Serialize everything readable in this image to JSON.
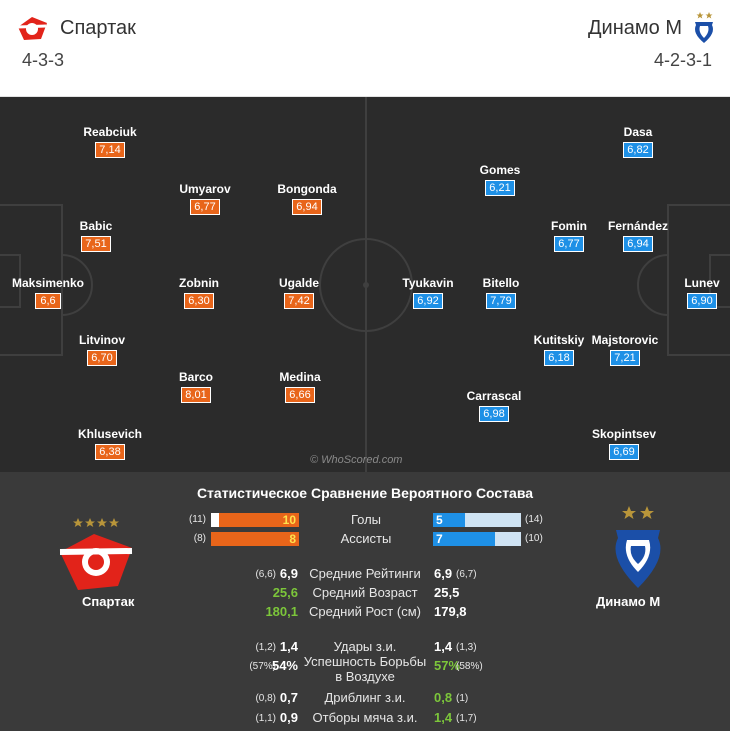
{
  "header": {
    "home_team": "Спартак",
    "home_formation": "4-3-3",
    "away_team": "Динамо М",
    "away_formation": "4-2-3-1"
  },
  "pitch": {
    "watermark": "© WhoScored.com",
    "home_players": [
      {
        "name": "Reabciuk",
        "rating": "7,14"
      },
      {
        "name": "Umyarov",
        "rating": "6,77"
      },
      {
        "name": "Bongonda",
        "rating": "6,94"
      },
      {
        "name": "Babic",
        "rating": "7,51"
      },
      {
        "name": "Maksimenko",
        "rating": "6,6"
      },
      {
        "name": "Zobnin",
        "rating": "6,30"
      },
      {
        "name": "Ugalde",
        "rating": "7,42"
      },
      {
        "name": "Litvinov",
        "rating": "6,70"
      },
      {
        "name": "Barco",
        "rating": "8,01"
      },
      {
        "name": "Medina",
        "rating": "6,66"
      },
      {
        "name": "Khlusevich",
        "rating": "6,38"
      }
    ],
    "away_players": [
      {
        "name": "Dasa",
        "rating": "6,82"
      },
      {
        "name": "Gomes",
        "rating": "6,21"
      },
      {
        "name": "Fomin",
        "rating": "6,77"
      },
      {
        "name": "Fernández",
        "rating": "6,94"
      },
      {
        "name": "Tyukavin",
        "rating": "6,92"
      },
      {
        "name": "Bitello",
        "rating": "7,79"
      },
      {
        "name": "Lunev",
        "rating": "6,90"
      },
      {
        "name": "Kutitskiy",
        "rating": "6,18"
      },
      {
        "name": "Majstorovic",
        "rating": "7,21"
      },
      {
        "name": "Carrascal",
        "rating": "6,98"
      },
      {
        "name": "Skopintsev",
        "rating": "6,69"
      }
    ]
  },
  "stats": {
    "title": "Статистическое Сравнение Вероятного Состава",
    "home_team": "Спартак",
    "away_team": "Динамо М",
    "colors": {
      "home": "#e8651a",
      "away": "#1e90e6",
      "better": "#7cc63a"
    },
    "bars": [
      {
        "label": "Голы",
        "home_paren": "(11)",
        "home_value": "10",
        "home_fraction": 0.91,
        "away_value": "5",
        "away_paren": "(14)",
        "away_fraction": 0.36
      },
      {
        "label": "Ассисты",
        "home_paren": "(8)",
        "home_value": "8",
        "home_fraction": 1.0,
        "away_value": "7",
        "away_paren": "(10)",
        "away_fraction": 0.7
      }
    ],
    "rows": [
      {
        "label": "Средние Рейтинги",
        "home_paren": "(6,6)",
        "home_value": "6,9",
        "away_value": "6,9",
        "away_paren": "(6,7)",
        "home_better": false,
        "away_better": false
      },
      {
        "label": "Средний Возраст",
        "home_paren": "",
        "home_value": "25,6",
        "away_value": "25,5",
        "away_paren": "",
        "home_better": true,
        "away_better": false
      },
      {
        "label": "Средний Рост (см)",
        "home_paren": "",
        "home_value": "180,1",
        "away_value": "179,8",
        "away_paren": "",
        "home_better": true,
        "away_better": false
      },
      {
        "label": "Удары з.и.",
        "home_paren": "(1,2)",
        "home_value": "1,4",
        "away_value": "1,4",
        "away_paren": "(1,3)",
        "home_better": false,
        "away_better": false
      },
      {
        "label": "Успешность Борьбы в Воздухе",
        "home_paren": "(57%)",
        "home_value": "54%",
        "away_value": "57%",
        "away_paren": "(58%)",
        "home_better": false,
        "away_better": true
      },
      {
        "label": "Дриблинг з.и.",
        "home_paren": "(0,8)",
        "home_value": "0,7",
        "away_value": "0,8",
        "away_paren": "(1)",
        "home_better": false,
        "away_better": true
      },
      {
        "label": "Отборы мяча з.и.",
        "home_paren": "(1,1)",
        "home_value": "0,9",
        "away_value": "1,4",
        "away_paren": "(1,7)",
        "home_better": false,
        "away_better": true
      }
    ]
  }
}
